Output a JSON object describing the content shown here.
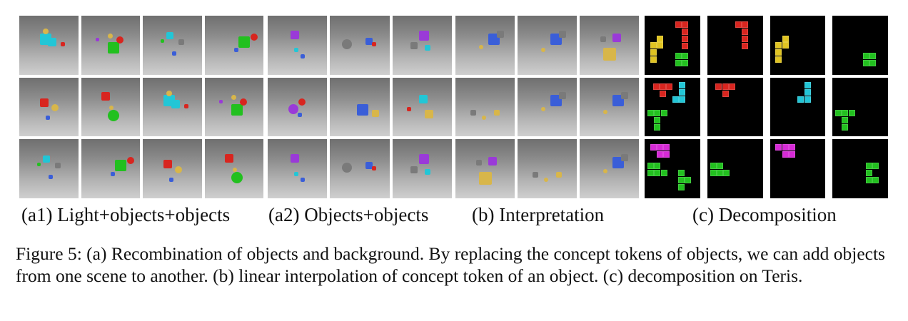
{
  "labels": {
    "a1": "(a1) Light+objects+objects",
    "a2": "(a2) Objects+objects",
    "b": "(b) Interpretation",
    "c": "(c) Decomposition"
  },
  "caption": "Figure 5: (a) Recombination of objects and background. By replacing the concept tokens of objects, we can add objects from one scene to another. (b) linear interpolation of concept token of an object. (c) decomposition on Teris.",
  "colors": {
    "red": "#d8251f",
    "yellow": "#e0c422",
    "green": "#22c01f",
    "cyan": "#22c6d6",
    "magenta": "#d62ad6",
    "blue": "#3a5ed8",
    "purple": "#9a3ad8",
    "gray": "#7a7a7a",
    "gold": "#d8b64a"
  }
}
